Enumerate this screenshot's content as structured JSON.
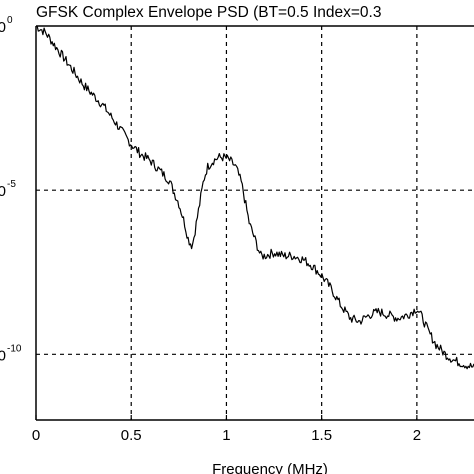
{
  "chart_data": {
    "type": "line",
    "title": "GFSK Complex Envelope PSD (BT=0.5 Index=0.3",
    "xlabel": "Frequency (MHz)",
    "ylabel": "",
    "y_scale": "log",
    "xlim": [
      0,
      2.3
    ],
    "ylim_exponent": [
      -12,
      0
    ],
    "grid": true,
    "grid_style": "dashed",
    "x_ticks": [
      {
        "value": 0,
        "label": "0"
      },
      {
        "value": 0.5,
        "label": "0.5"
      },
      {
        "value": 1,
        "label": "1"
      },
      {
        "value": 1.5,
        "label": "1.5"
      },
      {
        "value": 2,
        "label": "2"
      }
    ],
    "y_ticks": [
      {
        "exponent": 0,
        "base": "0",
        "sup": "0"
      },
      {
        "exponent": -5,
        "base": "0",
        "sup": "-5"
      },
      {
        "exponent": -10,
        "base": "0",
        "sup": "-10"
      }
    ],
    "series": [
      {
        "color": "#000000",
        "x": [
          0,
          0.05,
          0.1,
          0.15,
          0.2,
          0.25,
          0.3,
          0.35,
          0.4,
          0.45,
          0.5,
          0.55,
          0.6,
          0.65,
          0.7,
          0.72,
          0.75,
          0.78,
          0.8,
          0.82,
          0.83,
          0.86,
          0.88,
          0.9,
          0.93,
          0.96,
          0.99,
          1.02,
          1.05,
          1.08,
          1.1,
          1.12,
          1.15,
          1.18,
          1.2,
          1.25,
          1.3,
          1.35,
          1.4,
          1.45,
          1.5,
          1.55,
          1.6,
          1.65,
          1.7,
          1.75,
          1.8,
          1.85,
          1.9,
          1.95,
          2.0,
          2.03,
          2.06,
          2.1,
          2.15,
          2.2,
          2.25,
          2.3
        ],
        "y_log10": [
          0.0,
          -0.2,
          -0.6,
          -1.0,
          -1.4,
          -1.8,
          -2.1,
          -2.4,
          -2.8,
          -3.2,
          -3.6,
          -3.9,
          -4.1,
          -4.4,
          -4.7,
          -5.0,
          -5.4,
          -6.0,
          -6.5,
          -6.7,
          -6.4,
          -5.4,
          -4.7,
          -4.3,
          -4.1,
          -4.0,
          -4.0,
          -4.1,
          -4.3,
          -4.8,
          -5.4,
          -6.0,
          -6.5,
          -7.0,
          -7.0,
          -6.9,
          -7.0,
          -7.0,
          -7.1,
          -7.3,
          -7.6,
          -8.0,
          -8.5,
          -8.9,
          -9.0,
          -8.8,
          -8.7,
          -8.8,
          -8.9,
          -8.8,
          -8.6,
          -8.9,
          -9.3,
          -9.7,
          -10.0,
          -10.2,
          -10.3,
          -10.4
        ]
      }
    ]
  }
}
